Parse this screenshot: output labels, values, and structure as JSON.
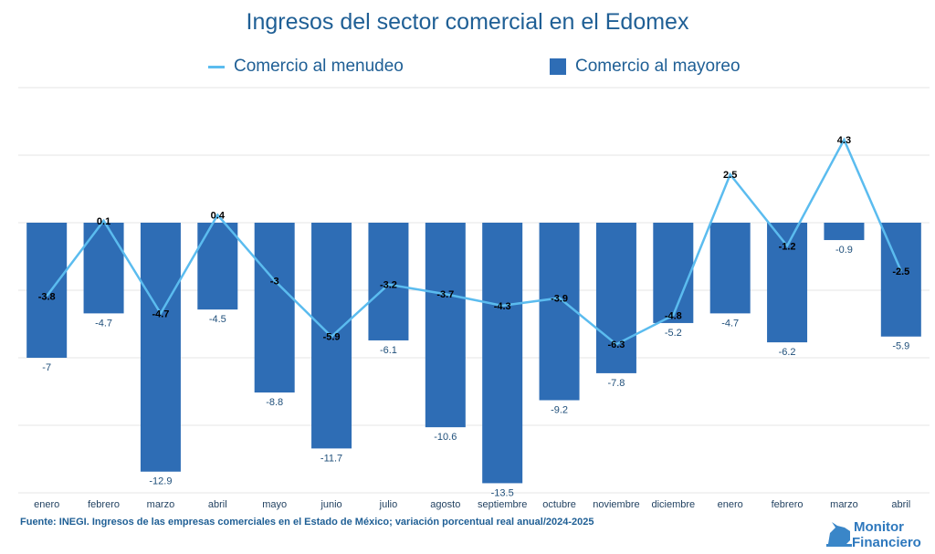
{
  "chart_data": {
    "type": "bar+line",
    "title": "Ingresos del sector comercial en el Edomex",
    "categories": [
      "enero",
      "febrero",
      "marzo",
      "abril",
      "mayo",
      "junio",
      "julio",
      "agosto",
      "septiembre",
      "octubre",
      "noviembre",
      "diciembre",
      "enero",
      "febrero",
      "marzo",
      "abril"
    ],
    "series": [
      {
        "name": "Comercio al mayoreo",
        "type": "bar",
        "color": "#2e6db5",
        "values": [
          -7,
          -4.7,
          -12.9,
          -4.5,
          -8.8,
          -11.7,
          -6.1,
          -10.6,
          -13.5,
          -9.2,
          -7.8,
          -5.2,
          -4.7,
          -6.2,
          -0.9,
          -5.9
        ]
      },
      {
        "name": "Comercio al menudeo",
        "type": "line",
        "color": "#5bbcef",
        "values": [
          -3.8,
          0.1,
          -4.7,
          0.4,
          -3,
          -5.9,
          -3.2,
          -3.7,
          -4.3,
          -3.9,
          -6.3,
          -4.8,
          2.5,
          -1.2,
          4.3,
          -2.5
        ]
      }
    ],
    "ylim": [
      -14,
      7
    ],
    "ygrid_step": 3.5,
    "grid": true,
    "legend_placement": "top",
    "source": "Fuente: INEGI. Ingresos de las empresas comerciales en el Estado de México; variación porcentual real anual/2024-2025"
  },
  "logo": {
    "line1": "Monitor",
    "line2": "Financiero"
  }
}
